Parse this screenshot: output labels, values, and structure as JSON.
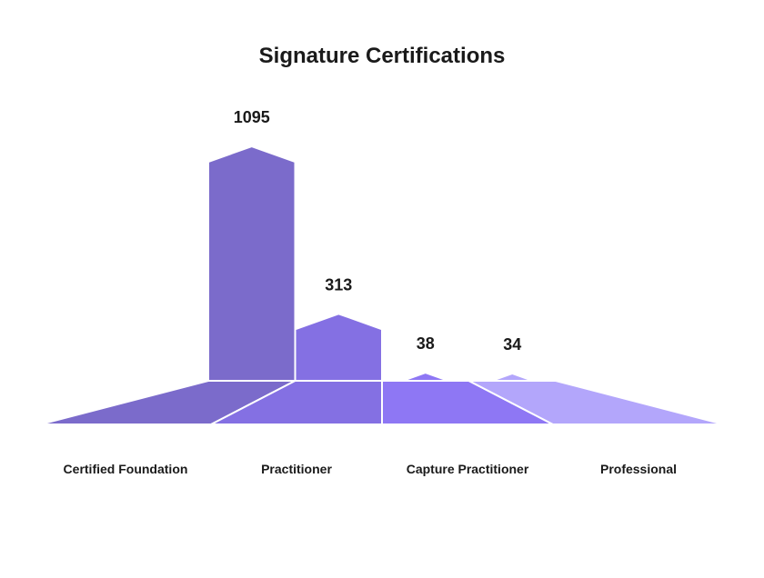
{
  "chart_data": {
    "type": "bar",
    "title": "Signature Certifications",
    "categories": [
      "Certified Foundation",
      "Practitioner",
      "Capture Practitioner",
      "Professional"
    ],
    "values": [
      1095,
      313,
      38,
      34
    ],
    "colors": [
      "#7b6bcb",
      "#8470e3",
      "#8e77f4",
      "#b3a6fb"
    ]
  }
}
